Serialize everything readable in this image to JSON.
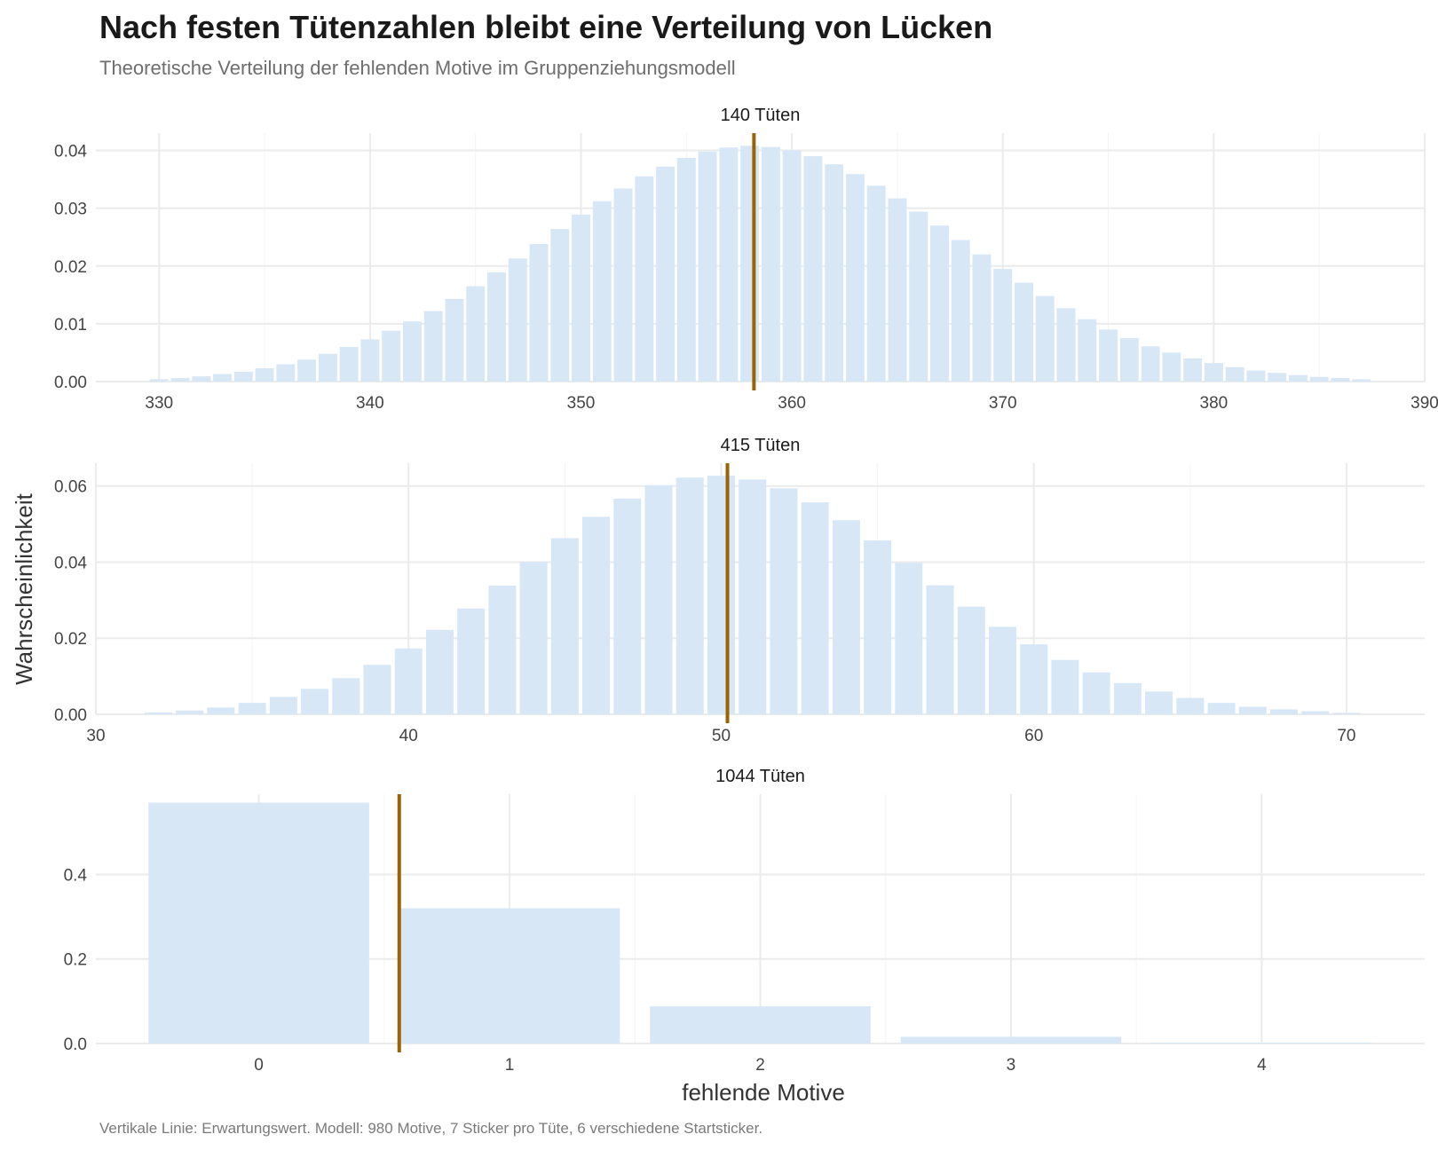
{
  "title": "Nach festen Tütenzahlen bleibt eine Verteilung von Lücken",
  "subtitle": "Theoretische Verteilung der fehlenden Motive im Gruppenziehungsmodell",
  "caption": "Vertikale Linie: Erwartungswert. Modell: 980 Motive, 7 Sticker pro Tüte, 6 verschiedene Startsticker.",
  "colors": {
    "bar": "#d7e7f5",
    "expected_line": "#9a6406",
    "grid": "#ebebeb",
    "text": "#333333"
  },
  "chart_data": {
    "type": "bar",
    "xlabel": "fehlende Motive",
    "ylabel": "Wahrscheinlichkeit",
    "grid": true,
    "facets": [
      {
        "label": "140 Tüten",
        "expected_value": 358.2,
        "xlim": [
          327,
          390
        ],
        "ylim": [
          0,
          0.043
        ],
        "x_ticks": [
          "330",
          "340",
          "350",
          "360",
          "370",
          "380",
          "390"
        ],
        "y_ticks": [
          "0.00",
          "0.01",
          "0.02",
          "0.03",
          "0.04"
        ],
        "x": [
          330,
          331,
          332,
          333,
          334,
          335,
          336,
          337,
          338,
          339,
          340,
          341,
          342,
          343,
          344,
          345,
          346,
          347,
          348,
          349,
          350,
          351,
          352,
          353,
          354,
          355,
          356,
          357,
          358,
          359,
          360,
          361,
          362,
          363,
          364,
          365,
          366,
          367,
          368,
          369,
          370,
          371,
          372,
          373,
          374,
          375,
          376,
          377,
          378,
          379,
          380,
          381,
          382,
          383,
          384,
          385,
          386,
          387
        ],
        "values": [
          0.0004,
          0.0006,
          0.0009,
          0.0013,
          0.0017,
          0.0023,
          0.003,
          0.0038,
          0.0048,
          0.006,
          0.0073,
          0.0088,
          0.0104,
          0.0122,
          0.0143,
          0.0165,
          0.0189,
          0.0213,
          0.0238,
          0.0264,
          0.0289,
          0.0312,
          0.0334,
          0.0355,
          0.0372,
          0.0387,
          0.0398,
          0.0405,
          0.0408,
          0.0406,
          0.04,
          0.039,
          0.0376,
          0.0359,
          0.0339,
          0.0317,
          0.0294,
          0.027,
          0.0245,
          0.022,
          0.0195,
          0.0171,
          0.0148,
          0.0127,
          0.0108,
          0.009,
          0.0075,
          0.0061,
          0.005,
          0.004,
          0.0032,
          0.0025,
          0.0019,
          0.0015,
          0.0011,
          0.0008,
          0.0006,
          0.0004
        ]
      },
      {
        "label": "415 Tüten",
        "expected_value": 50.2,
        "xlim": [
          30,
          72.5
        ],
        "ylim": [
          0,
          0.066
        ],
        "x_ticks": [
          "30",
          "40",
          "50",
          "60",
          "70"
        ],
        "y_ticks": [
          "0.00",
          "0.02",
          "0.04",
          "0.06"
        ],
        "x": [
          32,
          33,
          34,
          35,
          36,
          37,
          38,
          39,
          40,
          41,
          42,
          43,
          44,
          45,
          46,
          47,
          48,
          49,
          50,
          51,
          52,
          53,
          54,
          55,
          56,
          57,
          58,
          59,
          60,
          61,
          62,
          63,
          64,
          65,
          66,
          67,
          68,
          69,
          70
        ],
        "values": [
          0.0005,
          0.001,
          0.0018,
          0.003,
          0.0046,
          0.0067,
          0.0095,
          0.013,
          0.0173,
          0.0222,
          0.0278,
          0.0338,
          0.0401,
          0.0463,
          0.0519,
          0.0567,
          0.0602,
          0.0622,
          0.0627,
          0.0617,
          0.0594,
          0.0557,
          0.051,
          0.0457,
          0.0398,
          0.0339,
          0.0283,
          0.023,
          0.0184,
          0.0143,
          0.011,
          0.0082,
          0.006,
          0.0043,
          0.003,
          0.002,
          0.0013,
          0.0008,
          0.0004
        ]
      },
      {
        "label": "1044 Tüten",
        "expected_value": 0.56,
        "xlim": [
          -0.65,
          4.65
        ],
        "ylim": [
          0,
          0.59
        ],
        "x_ticks": [
          "0",
          "1",
          "2",
          "3",
          "4"
        ],
        "y_ticks": [
          "0.0",
          "0.2",
          "0.4"
        ],
        "x": [
          0,
          1,
          2,
          3,
          4
        ],
        "values": [
          0.57,
          0.32,
          0.088,
          0.016,
          0.002
        ]
      }
    ]
  }
}
